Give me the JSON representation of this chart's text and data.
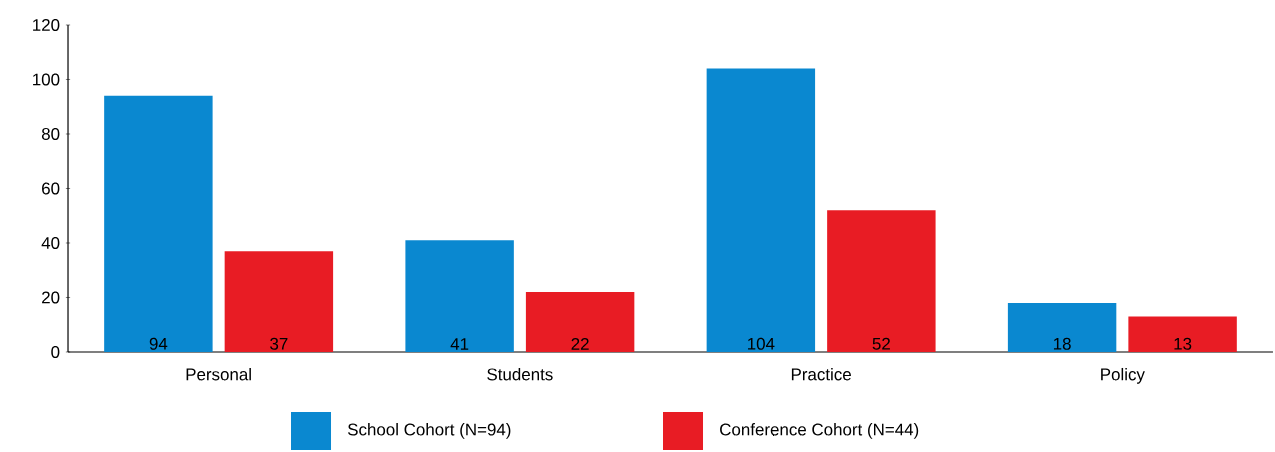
{
  "chart_data": {
    "type": "bar",
    "categories": [
      "Personal",
      "Students",
      "Practice",
      "Policy"
    ],
    "series": [
      {
        "name": "School Cohort (N=94)",
        "color": "#0a88d0",
        "values": [
          94,
          41,
          104,
          18
        ]
      },
      {
        "name": "Conference Cohort (N=44)",
        "color": "#e81c24",
        "values": [
          37,
          22,
          52,
          13
        ]
      }
    ],
    "ylim": [
      0,
      120
    ],
    "yticks": [
      0,
      20,
      40,
      60,
      80,
      100,
      120
    ],
    "data_labels": true,
    "legend": "bottom",
    "grid": false
  }
}
